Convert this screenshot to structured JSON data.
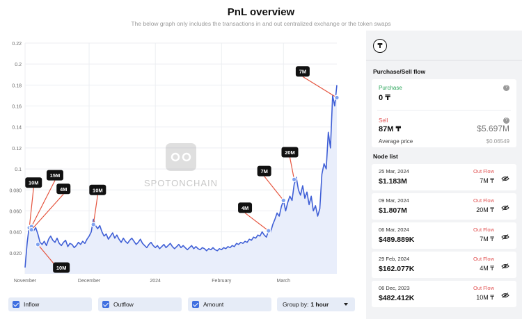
{
  "header": {
    "title": "PnL overview",
    "subtitle": "The below graph only includes the transactions in and out centralized exchange or the token swaps"
  },
  "watermark": "SPOTONCHAIN",
  "chart_data": {
    "type": "line",
    "title": "",
    "xlabel": "",
    "ylabel": "",
    "x_ticks": [
      {
        "label": "November",
        "t": 0
      },
      {
        "label": "December",
        "t": 30
      },
      {
        "label": "2024",
        "t": 61
      },
      {
        "label": "February",
        "t": 92
      },
      {
        "label": "March",
        "t": 121
      }
    ],
    "xlim": [
      0,
      146
    ],
    "y_ticks": [
      "0.020",
      "0.040",
      "0.060",
      "0.080",
      "0.1",
      "0.12",
      "0.14",
      "0.16",
      "0.18",
      "0.2",
      "0.22"
    ],
    "ylim": [
      0.0,
      0.22
    ],
    "grid": true,
    "line_color": "#3f5fd6",
    "fill_color": "#e9eefb",
    "points": [
      [
        0,
        0.006
      ],
      [
        1,
        0.03
      ],
      [
        2,
        0.046
      ],
      [
        3,
        0.043
      ],
      [
        4,
        0.041
      ],
      [
        5,
        0.044
      ],
      [
        6,
        0.038
      ],
      [
        7,
        0.03
      ],
      [
        8,
        0.028
      ],
      [
        9,
        0.031
      ],
      [
        10,
        0.027
      ],
      [
        11,
        0.033
      ],
      [
        12,
        0.036
      ],
      [
        13,
        0.032
      ],
      [
        14,
        0.03
      ],
      [
        15,
        0.034
      ],
      [
        16,
        0.029
      ],
      [
        17,
        0.027
      ],
      [
        18,
        0.03
      ],
      [
        19,
        0.032
      ],
      [
        20,
        0.026
      ],
      [
        21,
        0.029
      ],
      [
        22,
        0.028
      ],
      [
        23,
        0.025
      ],
      [
        24,
        0.027
      ],
      [
        25,
        0.03
      ],
      [
        26,
        0.028
      ],
      [
        27,
        0.031
      ],
      [
        28,
        0.029
      ],
      [
        29,
        0.033
      ],
      [
        30,
        0.036
      ],
      [
        31,
        0.04
      ],
      [
        32,
        0.052
      ],
      [
        33,
        0.046
      ],
      [
        34,
        0.043
      ],
      [
        35,
        0.046
      ],
      [
        36,
        0.04
      ],
      [
        37,
        0.036
      ],
      [
        38,
        0.038
      ],
      [
        39,
        0.033
      ],
      [
        40,
        0.036
      ],
      [
        41,
        0.039
      ],
      [
        42,
        0.034
      ],
      [
        43,
        0.037
      ],
      [
        44,
        0.033
      ],
      [
        45,
        0.03
      ],
      [
        46,
        0.034
      ],
      [
        47,
        0.031
      ],
      [
        48,
        0.029
      ],
      [
        49,
        0.032
      ],
      [
        50,
        0.034
      ],
      [
        51,
        0.031
      ],
      [
        52,
        0.028
      ],
      [
        53,
        0.03
      ],
      [
        54,
        0.033
      ],
      [
        55,
        0.029
      ],
      [
        56,
        0.027
      ],
      [
        57,
        0.025
      ],
      [
        58,
        0.028
      ],
      [
        59,
        0.03
      ],
      [
        60,
        0.027
      ],
      [
        61,
        0.025
      ],
      [
        62,
        0.027
      ],
      [
        63,
        0.024
      ],
      [
        64,
        0.026
      ],
      [
        65,
        0.028
      ],
      [
        66,
        0.025
      ],
      [
        67,
        0.027
      ],
      [
        68,
        0.029
      ],
      [
        69,
        0.026
      ],
      [
        70,
        0.024
      ],
      [
        71,
        0.026
      ],
      [
        72,
        0.028
      ],
      [
        73,
        0.025
      ],
      [
        74,
        0.027
      ],
      [
        75,
        0.025
      ],
      [
        76,
        0.023
      ],
      [
        77,
        0.025
      ],
      [
        78,
        0.027
      ],
      [
        79,
        0.024
      ],
      [
        80,
        0.026
      ],
      [
        81,
        0.024
      ],
      [
        82,
        0.023
      ],
      [
        83,
        0.025
      ],
      [
        84,
        0.024
      ],
      [
        85,
        0.022
      ],
      [
        86,
        0.024
      ],
      [
        87,
        0.023
      ],
      [
        88,
        0.025
      ],
      [
        89,
        0.023
      ],
      [
        90,
        0.022
      ],
      [
        91,
        0.024
      ],
      [
        92,
        0.023
      ],
      [
        93,
        0.025
      ],
      [
        94,
        0.024
      ],
      [
        95,
        0.026
      ],
      [
        96,
        0.025
      ],
      [
        97,
        0.027
      ],
      [
        98,
        0.026
      ],
      [
        99,
        0.029
      ],
      [
        100,
        0.028
      ],
      [
        101,
        0.03
      ],
      [
        102,
        0.029
      ],
      [
        103,
        0.031
      ],
      [
        104,
        0.03
      ],
      [
        105,
        0.033
      ],
      [
        106,
        0.032
      ],
      [
        107,
        0.035
      ],
      [
        108,
        0.034
      ],
      [
        109,
        0.037
      ],
      [
        110,
        0.036
      ],
      [
        111,
        0.04
      ],
      [
        112,
        0.037
      ],
      [
        113,
        0.035
      ],
      [
        114,
        0.041
      ],
      [
        115,
        0.04
      ],
      [
        116,
        0.047
      ],
      [
        117,
        0.052
      ],
      [
        118,
        0.058
      ],
      [
        119,
        0.055
      ],
      [
        120,
        0.064
      ],
      [
        121,
        0.07
      ],
      [
        122,
        0.06
      ],
      [
        123,
        0.068
      ],
      [
        124,
        0.074
      ],
      [
        125,
        0.07
      ],
      [
        126,
        0.085
      ],
      [
        127,
        0.092
      ],
      [
        128,
        0.08
      ],
      [
        129,
        0.075
      ],
      [
        130,
        0.084
      ],
      [
        131,
        0.072
      ],
      [
        132,
        0.078
      ],
      [
        133,
        0.066
      ],
      [
        134,
        0.074
      ],
      [
        135,
        0.06
      ],
      [
        136,
        0.065
      ],
      [
        137,
        0.055
      ],
      [
        138,
        0.062
      ],
      [
        139,
        0.095
      ],
      [
        140,
        0.105
      ],
      [
        141,
        0.1
      ],
      [
        142,
        0.135
      ],
      [
        143,
        0.12
      ],
      [
        144,
        0.17
      ],
      [
        145,
        0.16
      ],
      [
        146,
        0.18
      ]
    ],
    "annotations": [
      {
        "label": "10M",
        "t": 2,
        "y": 0.044,
        "box_t": 4,
        "box_y": 0.087
      },
      {
        "label": "15M",
        "t": 3,
        "y": 0.045,
        "box_t": 14,
        "box_y": 0.094
      },
      {
        "label": "4M",
        "t": 3,
        "y": 0.042,
        "box_t": 18,
        "box_y": 0.081
      },
      {
        "label": "10M",
        "t": 6,
        "y": 0.028,
        "box_t": 17,
        "box_y": 0.006
      },
      {
        "label": "10M",
        "t": 32,
        "y": 0.047,
        "box_t": 34,
        "box_y": 0.08
      },
      {
        "label": "4M",
        "t": 114,
        "y": 0.041,
        "box_t": 103,
        "box_y": 0.063
      },
      {
        "label": "7M",
        "t": 121,
        "y": 0.07,
        "box_t": 112,
        "box_y": 0.098
      },
      {
        "label": "20M",
        "t": 126,
        "y": 0.09,
        "box_t": 124,
        "box_y": 0.116
      },
      {
        "label": "7M",
        "t": 146,
        "y": 0.168,
        "box_t": 130,
        "box_y": 0.193
      }
    ]
  },
  "legend": {
    "inflow_label": "Inflow",
    "outflow_label": "Outflow",
    "amount_label": "Amount",
    "groupby_prefix": "Group by:",
    "groupby_value": "1 hour",
    "checkbox_color": "#3f6fe0"
  },
  "panel": {
    "flow_title": "Purchase/Sell flow",
    "purchase_label": "Purchase",
    "purchase_value": "0",
    "sell_label": "Sell",
    "sell_value": "87M",
    "sell_usd": "$5.697M",
    "avg_label": "Average price",
    "avg_value": "$0.06549",
    "node_title": "Node list",
    "nodes": [
      {
        "date": "25 Mar, 2024",
        "usd": "$1.183M",
        "type": "Out Flow",
        "amount": "7M"
      },
      {
        "date": "09 Mar, 2024",
        "usd": "$1.807M",
        "type": "Out Flow",
        "amount": "20M"
      },
      {
        "date": "06 Mar, 2024",
        "usd": "$489.889K",
        "type": "Out Flow",
        "amount": "7M"
      },
      {
        "date": "29 Feb, 2024",
        "usd": "$162.077K",
        "type": "Out Flow",
        "amount": "4M"
      },
      {
        "date": "06 Dec, 2023",
        "usd": "$482.412K",
        "type": "Out Flow",
        "amount": "10M"
      }
    ],
    "token_glyph": "₸",
    "info_glyph": "?",
    "icons": {
      "token": "token-icon",
      "eye": "eye-slash-icon",
      "info": "info-icon"
    }
  }
}
